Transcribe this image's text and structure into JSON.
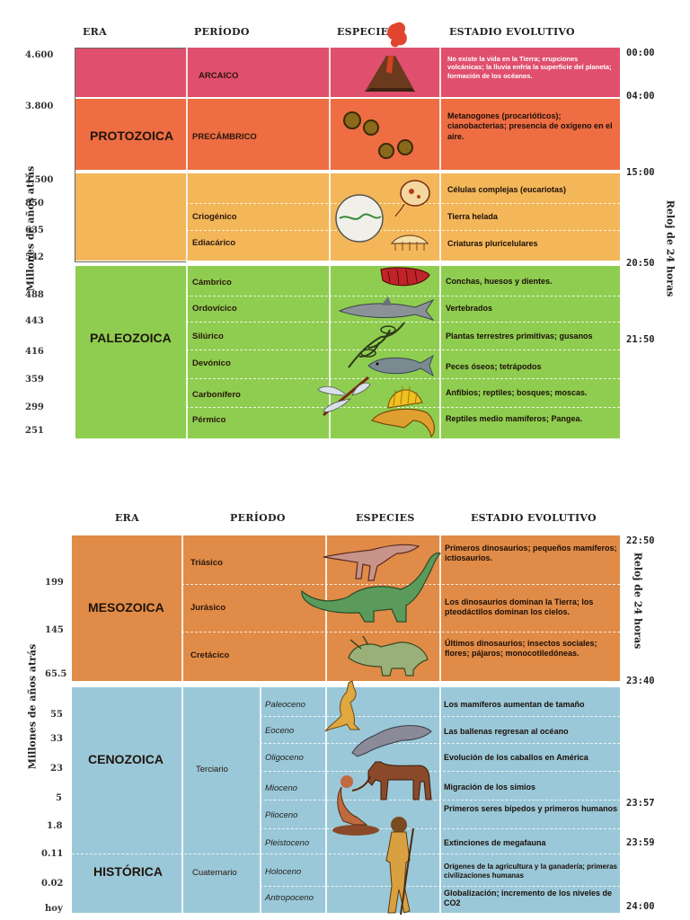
{
  "panel1": {
    "headers": {
      "era": "ERA",
      "periodo": "PERÍODO",
      "especies": "ESPECIES",
      "estadio": "ESTADIO EVOLUTIVO"
    },
    "ylabel": "Millones de años atrás",
    "rlabel": "Reloj de 24 horas",
    "ticks": [
      "4.600",
      "3.800",
      "2.500",
      "850",
      "635",
      "542",
      "488",
      "443",
      "416",
      "359",
      "299",
      "251"
    ],
    "clock": [
      "00:00",
      "04:00",
      "15:00",
      "20:50",
      "21:50"
    ],
    "eras": [
      "PROTOZOICA",
      "PALEOZOICA"
    ],
    "periods": [
      "ARCAICO",
      "PRECÁMBRICO",
      "Criogénico",
      "Ediacárico",
      "Cámbrico",
      "Ordovícico",
      "Silúrico",
      "Devónico",
      "Carbonífero",
      "Pérmico"
    ],
    "stages": [
      "No existe la vida en la Tierra; erupciones volcánicas; la lluvia enfría la superficie del planeta; formación de los océanos.",
      "Metanogones (procarióticos); cianobacterias; presencia de oxígeno en el aire.",
      "Células complejas (eucariotas)",
      "Tierra helada",
      "Criaturas pluricelulares",
      "Conchas, huesos y dientes.",
      "Vertebrados",
      "Plantas terrestres primitivas; gusanos",
      "Peces óseos; tetrápodos",
      "Anfibios; reptiles; bosques; moscas.",
      "Reptiles medio mamíferos; Pangea."
    ]
  },
  "panel2": {
    "headers": {
      "era": "ERA",
      "periodo": "PERÍODO",
      "especies": "ESPECIES",
      "estadio": "ESTADIO EVOLUTIVO"
    },
    "ylabel": "Millones de años atrás",
    "rlabel": "Reloj de 24 horas",
    "ticks": [
      "199",
      "145",
      "65.5",
      "55",
      "33",
      "23",
      "5",
      "1.8",
      "0.11",
      "0.02",
      "hoy"
    ],
    "clock": [
      "22:50",
      "23:40",
      "23:57",
      "23:59",
      "24:00"
    ],
    "eras": [
      "MESOZOICA",
      "CENOZOICA",
      "HISTÓRICA"
    ],
    "periods": [
      "Triásico",
      "Jurásico",
      "Cretácico",
      "Terciario",
      "Cuaternario"
    ],
    "epochs": [
      "Paleoceno",
      "Eoceno",
      "Oligoceno",
      "Mioceno",
      "Plioceno",
      "Pleistoceno",
      "Holoceno",
      "Antropoceno"
    ],
    "stages": [
      "Primeros dinosaurios; pequeños mamíferos; ictiosaurios.",
      "Los dinosaurios dominan la Tierra; los pteodáctilos dominan los cielos.",
      "Últimos dinosaurios; insectos sociales; flores; pájaros; monocotiledóneas.",
      "Los mamíferos aumentan de tamaño",
      "Las ballenas regresan al océano",
      "Evolución de los caballos en América",
      "Migración de los simios",
      "Primeros seres bípedos y primeros humanos",
      "Extinciones de megafauna",
      "Orígenes de la agricultura y la ganadería; primeras civilizaciones humanas",
      "Globalización; incremento de los niveles de CO2"
    ]
  },
  "colors": {
    "arcaico": "#e0506e",
    "precambrico": "#ee6d43",
    "proterozoico": "#f3b75a",
    "paleozoico": "#8fcd50",
    "mesozoico": "#e08b47",
    "cenozoico": "#9ac8d8"
  }
}
